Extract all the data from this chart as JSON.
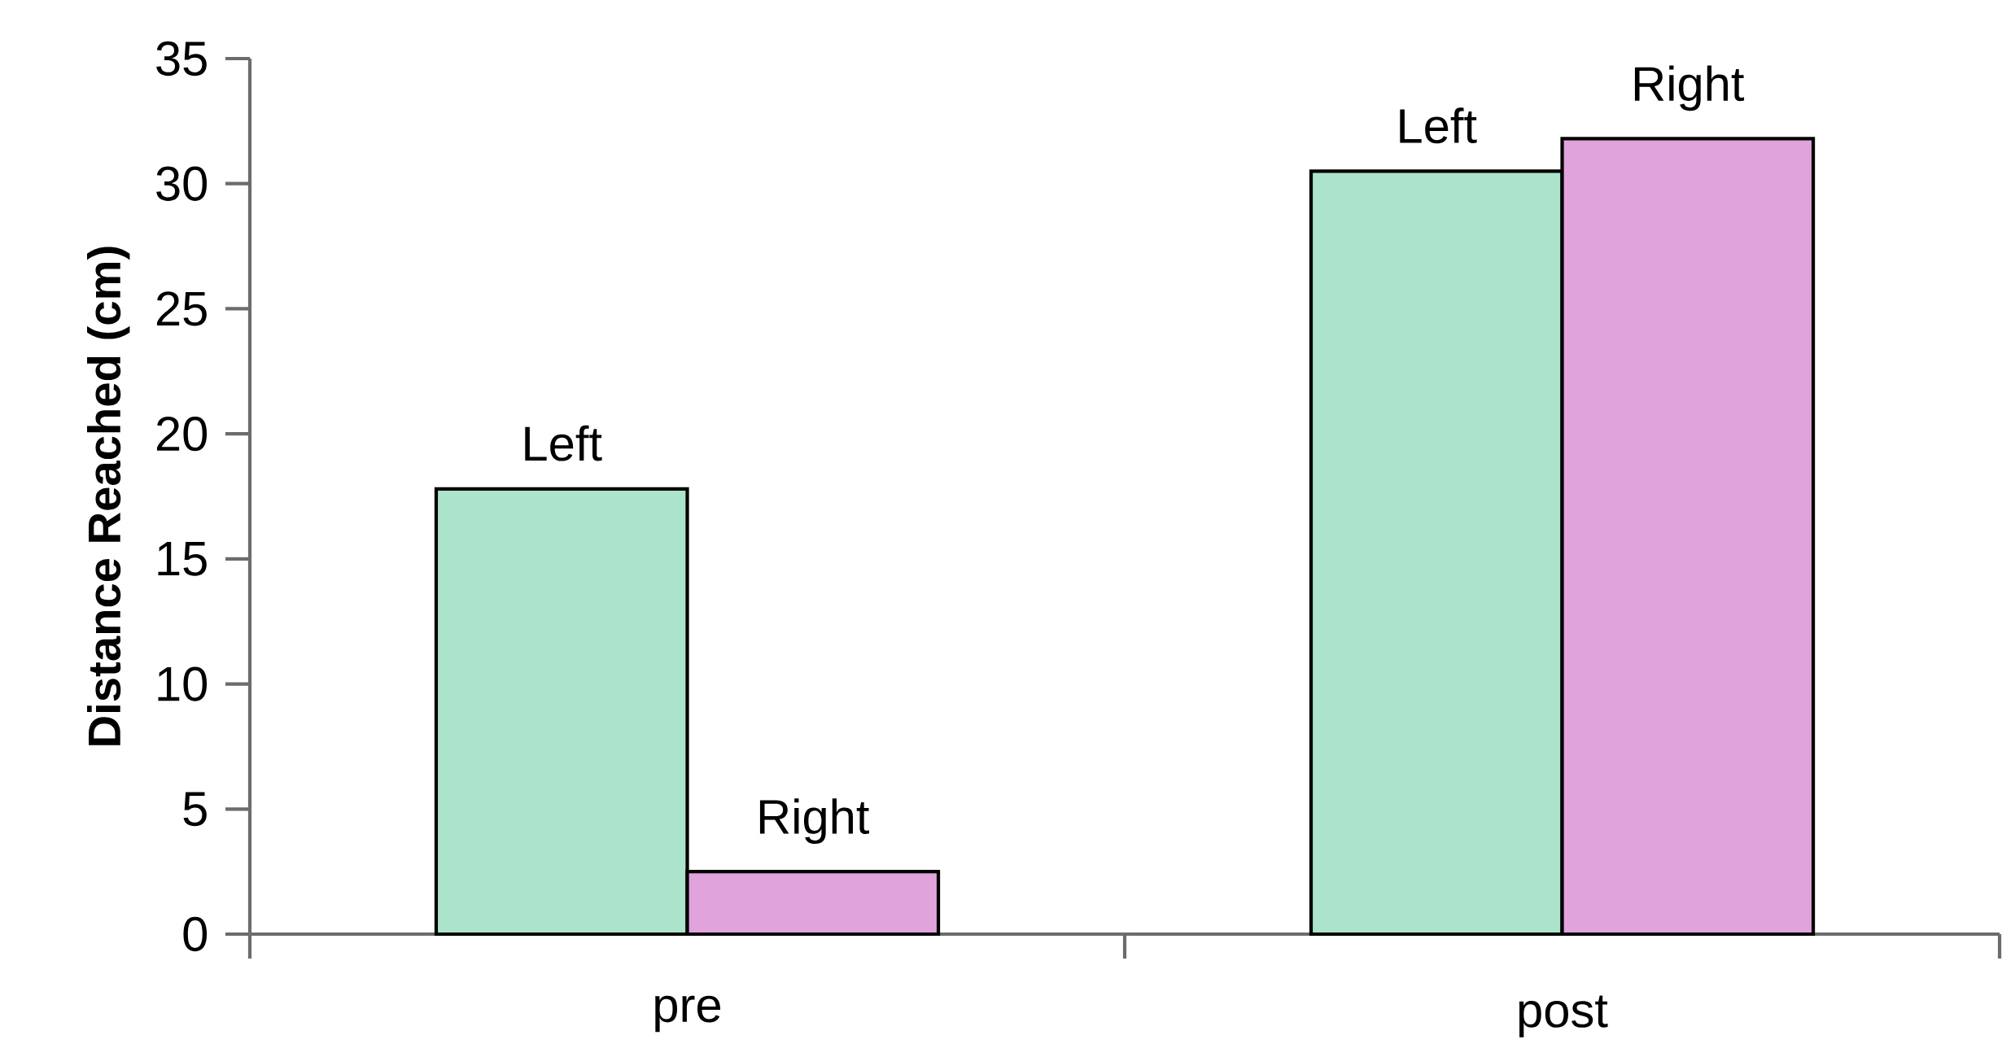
{
  "chart_data": {
    "type": "bar",
    "ylabel": "Distance Reached (cm)",
    "categories": [
      "pre",
      "post"
    ],
    "series": [
      {
        "name": "Left",
        "color": "#abe4cb",
        "values": [
          17.8,
          30.5
        ]
      },
      {
        "name": "Right",
        "color": "#e0a3dc",
        "values": [
          2.5,
          31.8
        ]
      }
    ],
    "ylim": [
      0,
      35
    ],
    "yticks": [
      0,
      5,
      10,
      15,
      20,
      25,
      30,
      35
    ]
  }
}
